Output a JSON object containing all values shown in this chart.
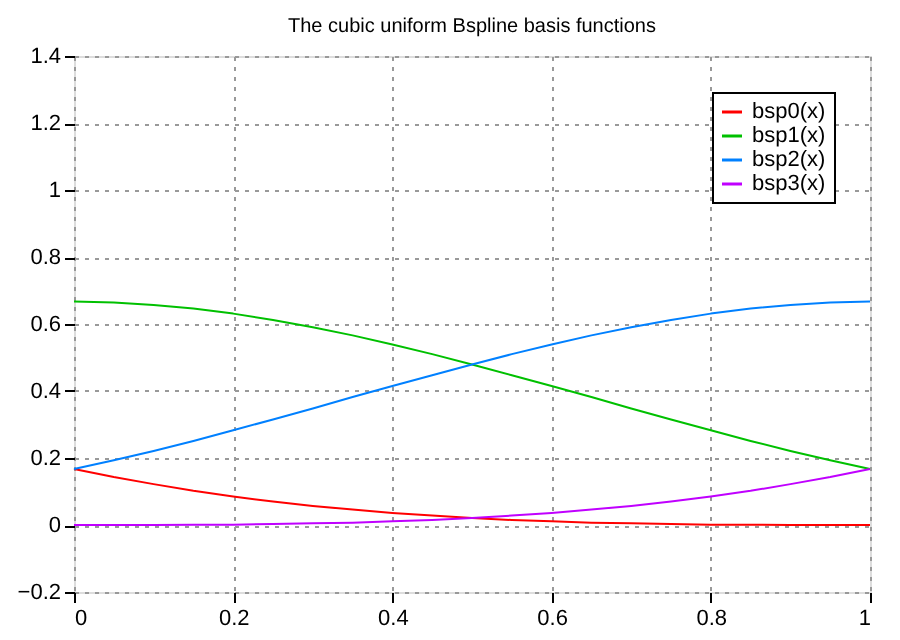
{
  "chart_data": {
    "type": "line",
    "title": "The cubic uniform Bspline basis functions",
    "x": [
      0,
      0.05,
      0.1,
      0.15,
      0.2,
      0.25,
      0.3,
      0.35,
      0.4,
      0.45,
      0.5,
      0.55,
      0.6,
      0.65,
      0.7,
      0.75,
      0.8,
      0.85,
      0.9,
      0.95,
      1
    ],
    "series": [
      {
        "name": "bsp0(x)",
        "color": "#ff0000",
        "values": [
          0.167,
          0.143,
          0.122,
          0.102,
          0.085,
          0.07,
          0.057,
          0.046,
          0.036,
          0.028,
          0.021,
          0.015,
          0.011,
          0.007,
          0.005,
          0.003,
          0.001,
          0.001,
          0,
          0,
          0
        ]
      },
      {
        "name": "bsp1(x)",
        "color": "#00c000",
        "values": [
          0.667,
          0.664,
          0.657,
          0.646,
          0.631,
          0.612,
          0.59,
          0.566,
          0.539,
          0.51,
          0.479,
          0.447,
          0.415,
          0.382,
          0.348,
          0.315,
          0.283,
          0.251,
          0.221,
          0.193,
          0.167
        ]
      },
      {
        "name": "bsp2(x)",
        "color": "#0080ff",
        "values": [
          0.167,
          0.193,
          0.221,
          0.251,
          0.283,
          0.315,
          0.348,
          0.382,
          0.415,
          0.447,
          0.479,
          0.51,
          0.539,
          0.566,
          0.59,
          0.612,
          0.631,
          0.646,
          0.657,
          0.664,
          0.667
        ]
      },
      {
        "name": "bsp3(x)",
        "color": "#c000ff",
        "values": [
          0,
          0,
          0,
          0.001,
          0.001,
          0.003,
          0.005,
          0.007,
          0.011,
          0.015,
          0.021,
          0.028,
          0.036,
          0.046,
          0.057,
          0.07,
          0.085,
          0.102,
          0.122,
          0.143,
          0.167
        ]
      }
    ],
    "xlim": [
      0,
      1
    ],
    "xticks": [
      0,
      0.2,
      0.4,
      0.6,
      0.8,
      1
    ],
    "ylim": [
      -0.2,
      1.4
    ],
    "yticks": [
      -0.2,
      0,
      0.2,
      0.4,
      0.6,
      0.8,
      1,
      1.2,
      1.4
    ],
    "grid": true,
    "legend": "top right",
    "marker": "none",
    "line_style": "solid"
  }
}
